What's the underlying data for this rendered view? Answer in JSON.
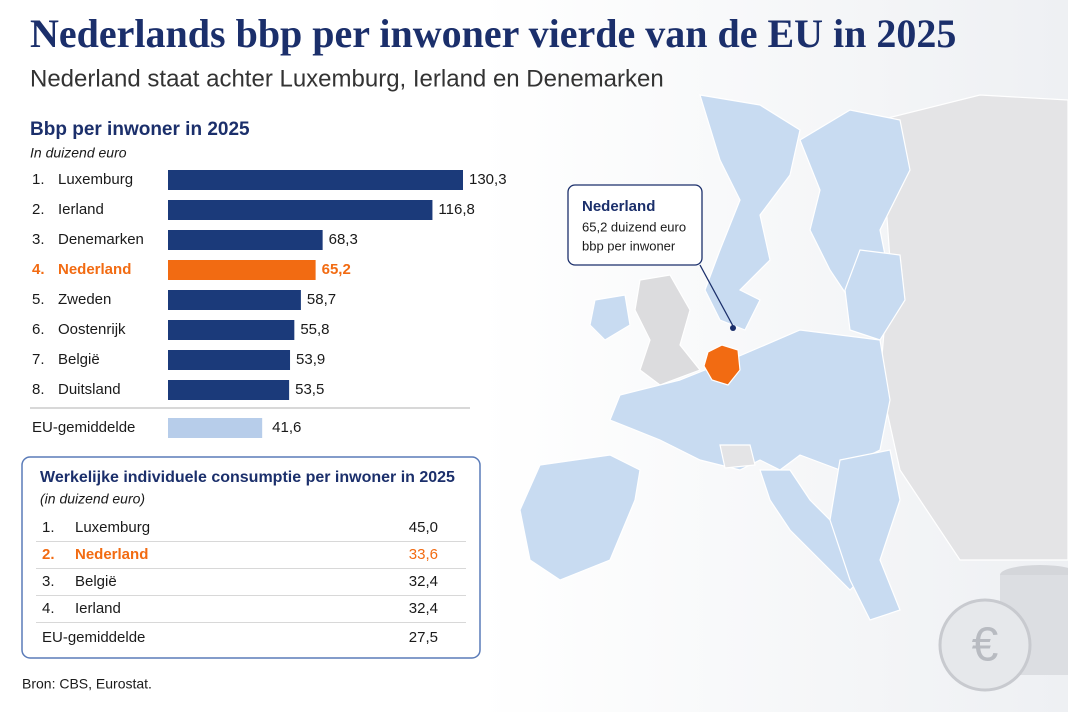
{
  "header": {
    "title": "Nederlands bbp per inwoner vierde van de EU in 2025",
    "subtitle": "Nederland staat achter Luxemburg, Ierland en Denemarken"
  },
  "chart_data": {
    "type": "bar",
    "orientation": "horizontal",
    "title": "Bbp per inwoner in 2025",
    "subtitle": "In duizend euro",
    "ranks": [
      "1.",
      "2.",
      "3.",
      "4.",
      "5.",
      "6.",
      "7.",
      "8."
    ],
    "categories": [
      "Luxemburg",
      "Ierland",
      "Denemarken",
      "Nederland",
      "Zweden",
      "Oostenrijk",
      "België",
      "Duitsland"
    ],
    "values": [
      130.3,
      116.8,
      68.3,
      65.2,
      58.7,
      55.8,
      53.9,
      53.5
    ],
    "value_labels": [
      "130,3",
      "116,8",
      "68,3",
      "65,2",
      "58,7",
      "55,8",
      "53,9",
      "53,5"
    ],
    "colors": [
      "#1b3a7a",
      "#1b3a7a",
      "#1b3a7a",
      "#f26b12",
      "#1b3a7a",
      "#1b3a7a",
      "#1b3a7a",
      "#1b3a7a"
    ],
    "highlight_index": 3,
    "reference": {
      "label": "EU-gemiddelde",
      "value": 41.6,
      "value_label": "41,6",
      "color": "#b7cdea"
    }
  },
  "table": {
    "title": "Werkelijke individuele consumptie per inwoner in 2025",
    "subtitle": "(in duizend euro)",
    "rows": [
      [
        "1.",
        "Luxemburg",
        "45,0"
      ],
      [
        "2.",
        "Nederland",
        "33,6"
      ],
      [
        "3.",
        "België",
        "32,4"
      ],
      [
        "4.",
        "Ierland",
        "32,4"
      ]
    ],
    "highlight_row": 1,
    "footer_row": [
      "EU-gemiddelde",
      "27,5"
    ]
  },
  "callout": {
    "title": "Nederland",
    "lines": [
      "65,2 duizend euro",
      "bbp per inwoner"
    ]
  },
  "coin_symbol": "€",
  "source": "Bron: CBS, Eurostat."
}
